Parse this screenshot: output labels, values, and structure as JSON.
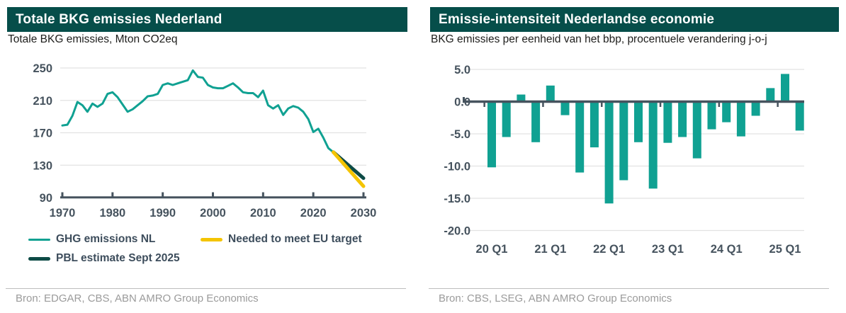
{
  "panels": [
    {
      "title": "Totale BKG emissies Nederland",
      "subtitle": "Totale BKG emissies, Mton CO2eq",
      "source": "Bron: EDGAR, CBS, ABN AMRO Group Economics",
      "legend": [
        {
          "label": "GHG emissions NL",
          "color": "#10a192",
          "thickness": 3
        },
        {
          "label": "Needed to meet EU target",
          "color": "#f4c402",
          "thickness": 5
        },
        {
          "label": "PBL estimate Sept 2025",
          "color": "#0d4b46",
          "thickness": 5
        }
      ]
    },
    {
      "title": "Emissie-intensiteit Nederlandse economie",
      "subtitle": "BKG emissies per eenheid van het bbp, procentuele verandering j-o-j",
      "source": "Bron: CBS, LSEG, ABN AMRO Group Economics"
    }
  ],
  "colors": {
    "header_bg": "#064e4a",
    "teal": "#10a192",
    "dark_teal": "#0d4b46",
    "yellow": "#f4c402",
    "axis": "#46535e",
    "grid": "#e2e2e2",
    "source_text": "#9b9b9b"
  },
  "chart_data": [
    {
      "type": "line",
      "title": "Totale BKG emissies Nederland",
      "ylabel": "Totale BKG emissies, Mton CO2eq",
      "xlabel": "",
      "ylim": [
        90,
        250
      ],
      "yticks": [
        250,
        210,
        170,
        130,
        90
      ],
      "xlim": [
        1970,
        2030
      ],
      "xticks": [
        1970,
        1980,
        1990,
        2000,
        2010,
        2020,
        2030
      ],
      "grid": "horizontal",
      "legend_position": "bottom-left",
      "series": [
        {
          "name": "GHG emissions NL",
          "color": "#10a192",
          "width": 3,
          "x_start": 1970,
          "y": [
            179,
            180,
            191,
            208,
            204,
            196,
            206,
            202,
            206,
            218,
            220,
            214,
            205,
            196,
            199,
            204,
            209,
            215,
            216,
            218,
            229,
            231,
            229,
            231,
            233,
            235,
            247,
            239,
            238,
            229,
            226,
            225,
            225,
            228,
            231,
            226,
            220,
            219,
            219,
            214,
            222,
            204,
            200,
            204,
            192,
            200,
            203,
            201,
            196,
            187,
            171,
            175,
            164,
            151,
            146
          ]
        },
        {
          "name": "PBL estimate Sept 2025",
          "color": "#0d4b46",
          "width": 5,
          "x": [
            2024,
            2030
          ],
          "y": [
            146,
            114
          ]
        },
        {
          "name": "Needed to meet EU target",
          "color": "#f4c402",
          "width": 5,
          "x": [
            2024,
            2030
          ],
          "y": [
            146,
            104
          ]
        }
      ]
    },
    {
      "type": "bar",
      "title": "Emissie-intensiteit Nederlandse economie",
      "ylabel": "BKG emissies per eenheid van het bbp, procentuele verandering j-o-j",
      "xlabel": "",
      "bar_color": "#10a192",
      "ylim": [
        -20,
        5
      ],
      "yticks": [
        5.0,
        0.0,
        -5.0,
        -10.0,
        -15.0,
        -20.0
      ],
      "grid": "horizontal",
      "categories": [
        "20 Q1",
        "20 Q2",
        "20 Q3",
        "20 Q4",
        "21 Q1",
        "21 Q2",
        "21 Q3",
        "21 Q4",
        "22 Q1",
        "22 Q2",
        "22 Q3",
        "22 Q4",
        "23 Q1",
        "23 Q2",
        "23 Q3",
        "23 Q4",
        "24 Q1",
        "24 Q2",
        "24 Q3",
        "24 Q4",
        "25 Q1",
        "25 Q2"
      ],
      "values": [
        -10.2,
        -5.5,
        1.1,
        -6.3,
        2.5,
        -2.1,
        -11.0,
        -7.1,
        -15.8,
        -12.2,
        -6.3,
        -13.5,
        -6.4,
        -5.5,
        -8.8,
        -4.3,
        -3.2,
        -5.4,
        -2.2,
        2.1,
        4.3,
        -4.5
      ],
      "xtick_labels": [
        "20 Q1",
        "21 Q1",
        "22 Q1",
        "23 Q1",
        "24 Q1",
        "25 Q1"
      ],
      "xtick_indices": [
        0,
        4,
        8,
        12,
        16,
        20
      ]
    }
  ]
}
